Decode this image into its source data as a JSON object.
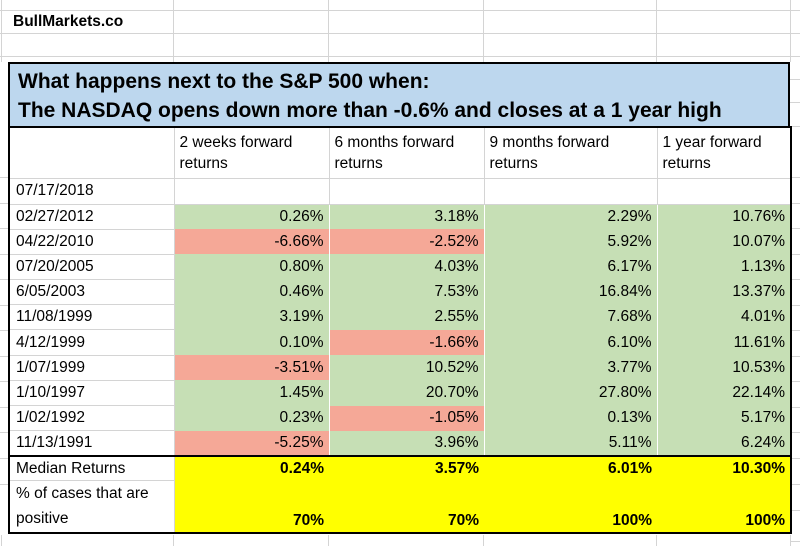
{
  "brand": "BullMarkets.co",
  "title": {
    "line1": "What happens next to the S&P 500 when:",
    "line2": "The NASDAQ opens down more than -0.6% and closes at a 1 year high"
  },
  "table": {
    "columns": [
      "2 weeks forward returns",
      "6 months forward returns",
      "9 months forward returns",
      "1 year forward returns"
    ],
    "rows": [
      {
        "date": "07/17/2018",
        "values": [
          "",
          "",
          "",
          ""
        ]
      },
      {
        "date": "02/27/2012",
        "values": [
          "0.26%",
          "3.18%",
          "2.29%",
          "10.76%"
        ]
      },
      {
        "date": "04/22/2010",
        "values": [
          "-6.66%",
          "-2.52%",
          "5.92%",
          "10.07%"
        ]
      },
      {
        "date": "07/20/2005",
        "values": [
          "0.80%",
          "4.03%",
          "6.17%",
          "1.13%"
        ]
      },
      {
        "date": "6/05/2003",
        "values": [
          "0.46%",
          "7.53%",
          "16.84%",
          "13.37%"
        ]
      },
      {
        "date": "11/08/1999",
        "values": [
          "3.19%",
          "2.55%",
          "7.68%",
          "4.01%"
        ]
      },
      {
        "date": "4/12/1999",
        "values": [
          "0.10%",
          "-1.66%",
          "6.10%",
          "11.61%"
        ]
      },
      {
        "date": "1/07/1999",
        "values": [
          "-3.51%",
          "10.52%",
          "3.77%",
          "10.53%"
        ]
      },
      {
        "date": "1/10/1997",
        "values": [
          "1.45%",
          "20.70%",
          "27.80%",
          "22.14%"
        ]
      },
      {
        "date": "1/02/1992",
        "values": [
          "0.23%",
          "-1.05%",
          "0.13%",
          "5.17%"
        ]
      },
      {
        "date": "11/13/1991",
        "values": [
          "-5.25%",
          "3.96%",
          "5.11%",
          "6.24%"
        ]
      }
    ],
    "summary": {
      "median_label": "Median Returns",
      "median_values": [
        "0.24%",
        "3.57%",
        "6.01%",
        "10.30%"
      ],
      "positive_label": "% of cases that are positive",
      "positive_values": [
        "70%",
        "70%",
        "100%",
        "100%"
      ]
    }
  },
  "colors": {
    "title_bg": "#BDD7EE",
    "positive_bg": "#C6DFB5",
    "negative_bg": "#F5A897",
    "summary_bg": "#FFFF00",
    "gridline": "#D4D4D4",
    "border": "#000000"
  }
}
